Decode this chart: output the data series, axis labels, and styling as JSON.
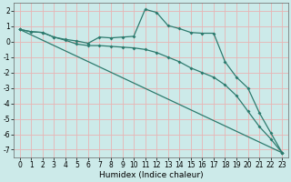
{
  "xlabel": "Humidex (Indice chaleur)",
  "background_color": "#cceae9",
  "grid_color": "#e8b4b4",
  "line_color": "#2d7b6e",
  "xlim": [
    -0.5,
    23.5
  ],
  "ylim": [
    -7.5,
    2.5
  ],
  "yticks": [
    2,
    1,
    0,
    -1,
    -2,
    -3,
    -4,
    -5,
    -6,
    -7
  ],
  "xticks": [
    0,
    1,
    2,
    3,
    4,
    5,
    6,
    7,
    8,
    9,
    10,
    11,
    12,
    13,
    14,
    15,
    16,
    17,
    18,
    19,
    20,
    21,
    22,
    23
  ],
  "line1_x": [
    0,
    1,
    2,
    3,
    4,
    5,
    6,
    7,
    8,
    9,
    10,
    11,
    12,
    13,
    14,
    15,
    16,
    17,
    18,
    19,
    20,
    21,
    22,
    23
  ],
  "line1_y": [
    0.8,
    0.65,
    0.6,
    0.3,
    0.15,
    0.05,
    -0.1,
    0.3,
    0.25,
    0.3,
    0.35,
    2.1,
    1.9,
    1.05,
    0.85,
    0.6,
    0.55,
    0.55,
    -1.3,
    -2.3,
    -3.0,
    -4.6,
    -5.9,
    -7.2
  ],
  "line2_x": [
    0,
    1,
    2,
    3,
    4,
    5,
    6,
    7,
    8,
    9,
    10,
    11,
    12,
    13,
    14,
    15,
    16,
    17,
    18,
    19,
    20,
    21,
    22,
    23
  ],
  "line2_y": [
    0.8,
    0.65,
    0.6,
    0.3,
    0.1,
    -0.15,
    -0.25,
    -0.25,
    -0.3,
    -0.35,
    -0.4,
    -0.5,
    -0.7,
    -1.0,
    -1.3,
    -1.7,
    -2.0,
    -2.3,
    -2.8,
    -3.5,
    -4.5,
    -5.5,
    -6.3,
    -7.2
  ],
  "line3_x": [
    0,
    23
  ],
  "line3_y": [
    0.8,
    -7.2
  ]
}
